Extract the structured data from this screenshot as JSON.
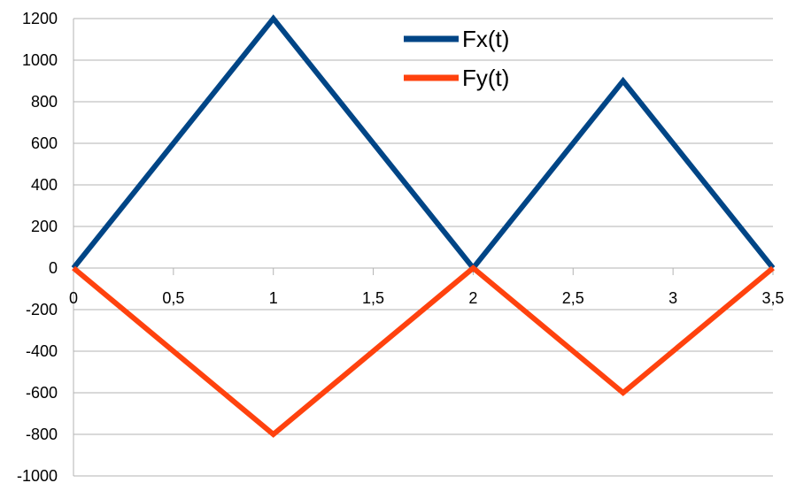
{
  "chart_data": {
    "type": "line",
    "title": "",
    "xlabel": "",
    "ylabel": "",
    "xlim": [
      0,
      3.5
    ],
    "ylim": [
      -1000,
      1200
    ],
    "grid": true,
    "legend_position": "top-right",
    "x_tick_labels": [
      "0",
      "0,5",
      "1",
      "1,5",
      "2",
      "2,5",
      "3",
      "3,5"
    ],
    "x_tick_values": [
      0,
      0.5,
      1,
      1.5,
      2,
      2.5,
      3,
      3.5
    ],
    "y_tick_labels": [
      "1200",
      "1000",
      "800",
      "600",
      "400",
      "200",
      "0",
      "-200",
      "-400",
      "-600",
      "-800",
      "-1000"
    ],
    "y_tick_values": [
      1200,
      1000,
      800,
      600,
      400,
      200,
      0,
      -200,
      -400,
      -600,
      -800,
      -1000
    ],
    "series": [
      {
        "name": "Fx(t)",
        "color": "#004586",
        "x": [
          0,
          1,
          2,
          2.75,
          3.5
        ],
        "y": [
          0,
          1200,
          0,
          900,
          0
        ]
      },
      {
        "name": "Fy(t)",
        "color": "#ff420e",
        "x": [
          0,
          1,
          2,
          2.75,
          3.5
        ],
        "y": [
          0,
          -800,
          0,
          -600,
          0
        ]
      }
    ]
  }
}
